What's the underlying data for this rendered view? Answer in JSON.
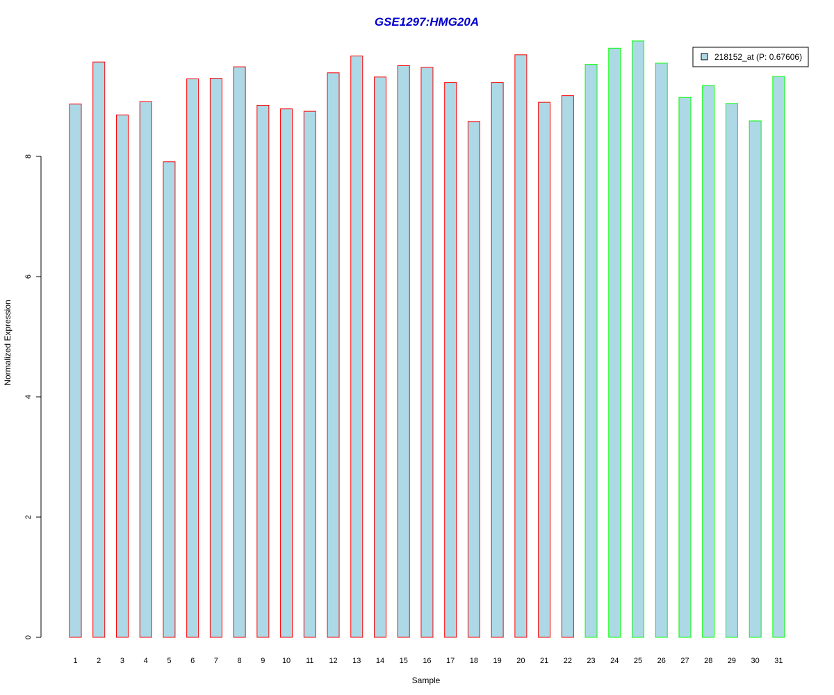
{
  "chart_data": {
    "type": "bar",
    "title": "GSE1297:HMG20A",
    "xlabel": "Sample",
    "ylabel": "Normalized Expression",
    "ylim": [
      0,
      9.9
    ],
    "yticks": [
      0,
      2,
      4,
      6,
      8
    ],
    "grid": false,
    "legend_position": "top-right",
    "categories": [
      "1",
      "2",
      "3",
      "4",
      "5",
      "6",
      "7",
      "8",
      "9",
      "10",
      "11",
      "12",
      "13",
      "14",
      "15",
      "16",
      "17",
      "18",
      "19",
      "20",
      "21",
      "22",
      "23",
      "24",
      "25",
      "26",
      "27",
      "28",
      "29",
      "30",
      "31"
    ],
    "series": [
      {
        "name": "218152_at (P: 0.67606)",
        "values": [
          8.87,
          9.57,
          8.69,
          8.91,
          7.91,
          9.29,
          9.3,
          9.49,
          8.85,
          8.79,
          8.75,
          9.39,
          9.67,
          9.32,
          9.51,
          9.48,
          9.23,
          8.58,
          9.23,
          9.69,
          8.9,
          9.01,
          9.53,
          9.8,
          9.92,
          9.55,
          8.98,
          9.18,
          8.88,
          8.59,
          9.33
        ],
        "fill": "#ADD8E6",
        "groups": [
          1,
          1,
          1,
          1,
          1,
          1,
          1,
          1,
          1,
          1,
          1,
          1,
          1,
          1,
          1,
          1,
          1,
          1,
          1,
          1,
          1,
          1,
          2,
          2,
          2,
          2,
          2,
          2,
          2,
          2,
          2
        ]
      }
    ],
    "group_colors": {
      "1": "#FF0000",
      "2": "#00FF00"
    }
  }
}
